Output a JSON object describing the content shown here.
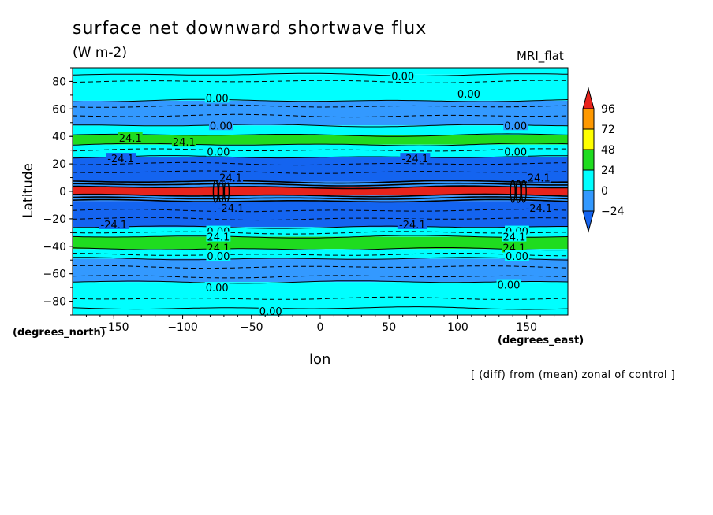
{
  "chart_data": {
    "type": "heatmap",
    "title": "surface net downward shortwave flux",
    "units": "(W m-2)",
    "model": "MRI_flat",
    "ylabel": "Latitude",
    "ylabel_units": "(degrees_north)",
    "xlabel": "lon",
    "xlabel_units": "(degrees_east)",
    "footnote": "[ (diff) from (mean) zonal of control ]",
    "xlim": [
      -180,
      180
    ],
    "ylim": [
      -90,
      90
    ],
    "xticks": [
      -150,
      -100,
      -50,
      0,
      50,
      100,
      150
    ],
    "yticks": [
      80,
      60,
      40,
      20,
      0,
      -20,
      -40,
      -60,
      -80
    ],
    "colorbar": {
      "levels": [
        96,
        72,
        48,
        24,
        0,
        -24
      ],
      "colors": [
        "#e8231c",
        "#ff9900",
        "#ffff00",
        "#1fdc1f",
        "#00ffff",
        "#3399ff",
        "#1464f0"
      ]
    },
    "bands": [
      {
        "lat_top": 90,
        "lat_bottom": 85,
        "value_class": "0 to 24"
      },
      {
        "lat_top": 85,
        "lat_bottom": 66,
        "value_class": "0 to 24"
      },
      {
        "lat_top": 66,
        "lat_bottom": 48,
        "value_class": "-24 to 0"
      },
      {
        "lat_top": 48,
        "lat_bottom": 41,
        "value_class": "0 to 24"
      },
      {
        "lat_top": 41,
        "lat_bottom": 34,
        "value_class": "24 to 48"
      },
      {
        "lat_top": 34,
        "lat_bottom": 25,
        "value_class": "0 to 24"
      },
      {
        "lat_top": 25,
        "lat_bottom": 7,
        "value_class": "< -24"
      },
      {
        "lat_top": 7,
        "lat_bottom": 3,
        "value_class": "-24 to 0"
      },
      {
        "lat_top": 3,
        "lat_bottom": -3,
        "value_class": "> 96"
      },
      {
        "lat_top": -3,
        "lat_bottom": -7,
        "value_class": "-24 to 0"
      },
      {
        "lat_top": -7,
        "lat_bottom": -26,
        "value_class": "< -24"
      },
      {
        "lat_top": -26,
        "lat_bottom": -33,
        "value_class": "0 to 24"
      },
      {
        "lat_top": -33,
        "lat_bottom": -42,
        "value_class": "24 to 48"
      },
      {
        "lat_top": -42,
        "lat_bottom": -49,
        "value_class": "0 to 24"
      },
      {
        "lat_top": -49,
        "lat_bottom": -66,
        "value_class": "-24 to 0"
      },
      {
        "lat_top": -66,
        "lat_bottom": -90,
        "value_class": "0 to 24"
      }
    ],
    "contour_labels": [
      {
        "text": "0.00",
        "lon": 60,
        "lat": 84
      },
      {
        "text": "0.00",
        "lon": -75,
        "lat": 68
      },
      {
        "text": "0.00",
        "lon": 108,
        "lat": 71
      },
      {
        "text": "0.00",
        "lon": -72,
        "lat": 48
      },
      {
        "text": "0.00",
        "lon": 142,
        "lat": 48
      },
      {
        "text": "24.1",
        "lon": -138,
        "lat": 39
      },
      {
        "text": "24.1",
        "lon": -99,
        "lat": 36
      },
      {
        "text": "0.00",
        "lon": -74,
        "lat": 29
      },
      {
        "text": "0.00",
        "lon": 142,
        "lat": 29
      },
      {
        "text": "-24.1",
        "lon": -145,
        "lat": 24
      },
      {
        "text": "-24.1",
        "lon": 69,
        "lat": 24
      },
      {
        "text": "24.1",
        "lon": -65,
        "lat": 10
      },
      {
        "text": "24.1",
        "lon": 159,
        "lat": 10
      },
      {
        "text": "-24.1",
        "lon": -65,
        "lat": -12
      },
      {
        "text": "-24.1",
        "lon": 159,
        "lat": -12
      },
      {
        "text": "-24.1",
        "lon": -150,
        "lat": -24
      },
      {
        "text": "-24.1",
        "lon": 67,
        "lat": -24
      },
      {
        "text": "0.00",
        "lon": -74,
        "lat": -29
      },
      {
        "text": "0.00",
        "lon": 143,
        "lat": -29
      },
      {
        "text": "24.1",
        "lon": -74,
        "lat": -33
      },
      {
        "text": "24.1",
        "lon": 141,
        "lat": -33
      },
      {
        "text": "24.1",
        "lon": -74,
        "lat": -41
      },
      {
        "text": "24.1",
        "lon": 141,
        "lat": -41
      },
      {
        "text": "0.00",
        "lon": -74,
        "lat": -47
      },
      {
        "text": "0.00",
        "lon": 143,
        "lat": -47
      },
      {
        "text": "0.00",
        "lon": -75,
        "lat": -70
      },
      {
        "text": "0.00",
        "lon": 137,
        "lat": -68
      },
      {
        "text": "0.00",
        "lon": -36,
        "lat": -87
      }
    ]
  }
}
